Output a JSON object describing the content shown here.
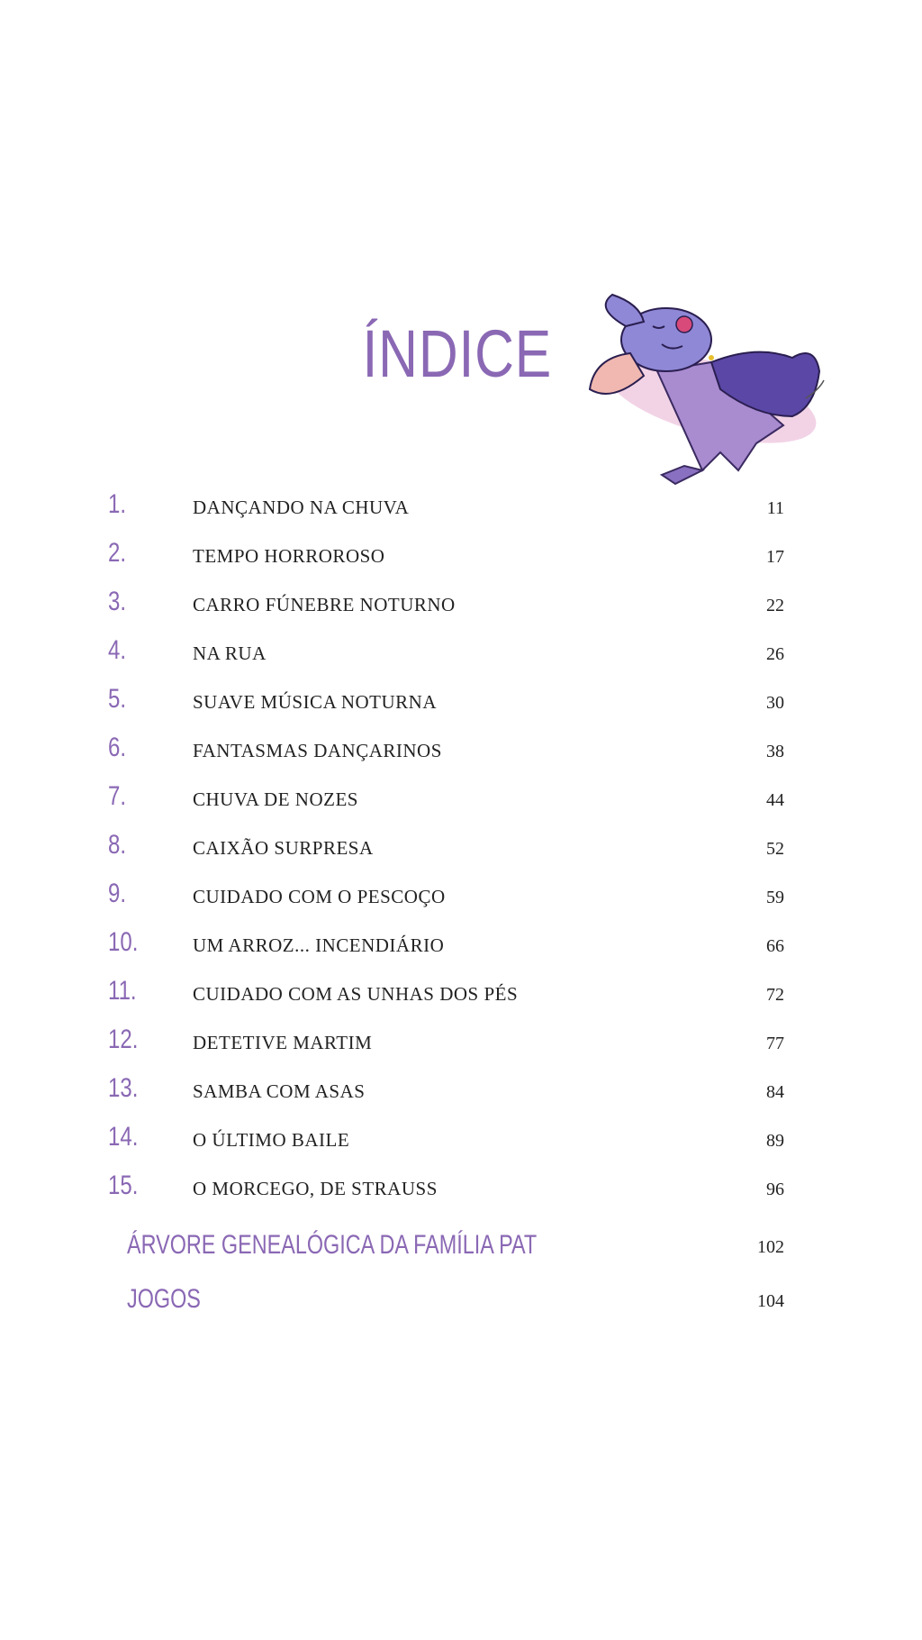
{
  "title": "ÍNDICE",
  "accent_color": "#8a68b4",
  "illustration": "sleeping-vampire-bat",
  "chapters": [
    {
      "num": "1.",
      "title": "DANÇANDO NA CHUVA",
      "page": "11"
    },
    {
      "num": "2.",
      "title": "TEMPO HORROROSO",
      "page": "17"
    },
    {
      "num": "3.",
      "title": "CARRO FÚNEBRE NOTURNO",
      "page": "22"
    },
    {
      "num": "4.",
      "title": "NA RUA",
      "page": "26"
    },
    {
      "num": "5.",
      "title": "SUAVE MÚSICA NOTURNA",
      "page": "30"
    },
    {
      "num": "6.",
      "title": "FANTASMAS DANÇARINOS",
      "page": "38"
    },
    {
      "num": "7.",
      "title": "CHUVA DE NOZES",
      "page": "44"
    },
    {
      "num": "8.",
      "title": "CAIXÃO SURPRESA",
      "page": "52"
    },
    {
      "num": "9.",
      "title": "CUIDADO COM O PESCOÇO",
      "page": "59"
    },
    {
      "num": "10.",
      "title": "UM ARROZ... INCENDIÁRIO",
      "page": "66"
    },
    {
      "num": "11.",
      "title": "CUIDADO COM AS UNHAS DOS PÉS",
      "page": "72"
    },
    {
      "num": "12.",
      "title": "DETETIVE MARTIM",
      "page": "77"
    },
    {
      "num": "13.",
      "title": "SAMBA COM ASAS",
      "page": "84"
    },
    {
      "num": "14.",
      "title": "O ÚLTIMO BAILE",
      "page": "89"
    },
    {
      "num": "15.",
      "title": "O MORCEGO, DE STRAUSS",
      "page": "96"
    }
  ],
  "extras": [
    {
      "title": "ÁRVORE GENEALÓGICA DA FAMÍLIA PAT",
      "page": "102"
    },
    {
      "title": "JOGOS",
      "page": "104"
    }
  ]
}
